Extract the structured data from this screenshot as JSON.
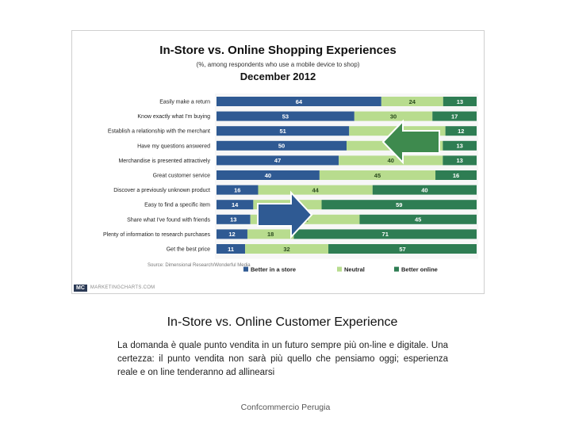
{
  "chart_data": {
    "type": "bar",
    "orientation": "horizontal",
    "stacked": true,
    "title": "In-Store vs. Online Shopping Experiences",
    "subtitle": "(%, among respondents who use a mobile device to shop)",
    "date": "December 2012",
    "categories": [
      "Easily make a return",
      "Know exactly what I'm buying",
      "Establish a relationship with the merchant",
      "Have my questions answered",
      "Merchandise is presented attractively",
      "Great customer service",
      "Discover a previously unknown product",
      "Easy to find a specific item",
      "Share what I've found with friends",
      "Plenty of information to research purchases",
      "Get the best price"
    ],
    "series": [
      {
        "name": "Better in a store",
        "color": "#2f5a93",
        "values": [
          64,
          53,
          51,
          50,
          47,
          40,
          16,
          14,
          13,
          12,
          11
        ]
      },
      {
        "name": "Neutral",
        "color": "#b8dc8e",
        "values": [
          24,
          30,
          37,
          37,
          40,
          45,
          44,
          26,
          42,
          18,
          32
        ]
      },
      {
        "name": "Better online",
        "color": "#2e7d53",
        "values": [
          13,
          17,
          12,
          13,
          13,
          16,
          40,
          59,
          45,
          71,
          57
        ]
      }
    ],
    "legend_placement": "bottom",
    "xlim": [
      0,
      100
    ]
  },
  "brand": {
    "logo": "MC",
    "name": "MARKETINGCHARTS.COM"
  },
  "source": "Source: Dimensional Research/Wonderful Media",
  "slide": {
    "title": "In-Store vs. Online Customer Experience",
    "body": "La domanda è quale punto vendita in un futuro sempre più on-line e digitale. Una certezza: il punto vendita non sarà più quello che pensiamo oggi; esperienza reale e on line tenderanno ad allinearsi",
    "footer": "Confcommercio Perugia"
  },
  "colors": {
    "arrow_online": "#3e8a4e",
    "arrow_store": "#2f5a93"
  },
  "icons": {
    "left_arrow": "left-arrow-icon",
    "right_arrow": "right-arrow-icon"
  }
}
